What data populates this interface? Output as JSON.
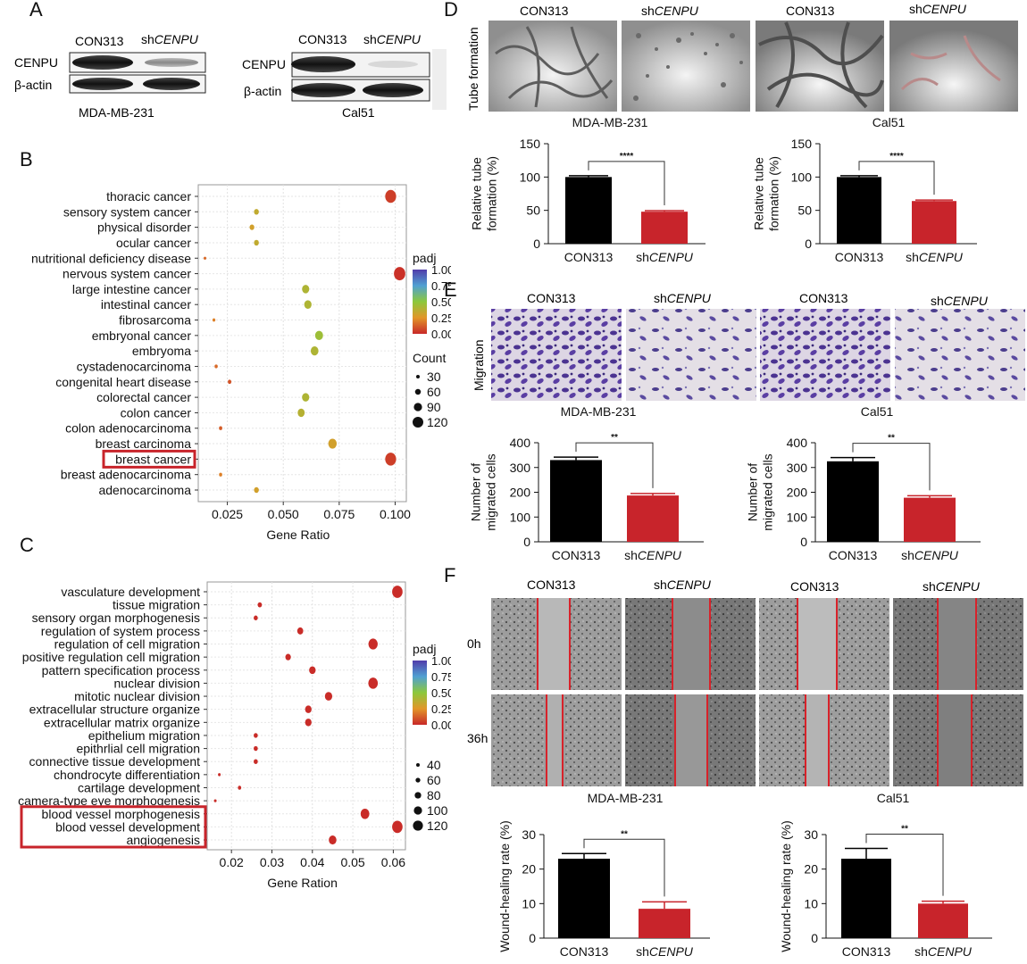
{
  "panels": {
    "a": "A",
    "b": "B",
    "c": "C",
    "d": "D",
    "e": "E",
    "f": "F"
  },
  "blots": {
    "left": {
      "col1": "CON313",
      "col2_prefix": "sh",
      "col2_gene": "CENPU",
      "row1": "CENPU",
      "row2": "β-actin",
      "cell": "MDA-MB-231"
    },
    "right": {
      "col1": "CON313",
      "col2_prefix": "sh",
      "col2_gene": "CENPU",
      "row1": "CENPU",
      "row2": "β-actin",
      "cell": "Cal51"
    }
  },
  "micro": {
    "d_header": [
      "CON313",
      "sh",
      "CENPU",
      "CON313",
      "sh",
      "CENPU"
    ],
    "d_rowlabel": "Tube formation",
    "e_header": [
      "CON313",
      "sh",
      "CENPU",
      "CON313",
      "sh",
      "CENPU"
    ],
    "e_rowlabel": "Migration",
    "f_header": [
      "CON313",
      "sh",
      "CENPU",
      "CON313",
      "sh",
      "CENPU"
    ],
    "f_row1": "0h",
    "f_row2": "36h",
    "cells": [
      "MDA-MB-231",
      "Cal51"
    ]
  },
  "chart_data": [
    {
      "id": "B",
      "type": "scatter",
      "categories": [
        "thoracic cancer",
        "sensory system cancer",
        "physical disorder",
        "ocular cancer",
        "nutritional deficiency disease",
        "nervous system cancer",
        "large intestine cancer",
        "intestinal cancer",
        "fibrosarcoma",
        "embryonal cancer",
        "embryoma",
        "cystadenocarcinoma",
        "congenital heart disease",
        "colorectal cancer",
        "colon cancer",
        "colon adenocarcinoma",
        "breast carcinoma",
        "breast cancer",
        "breast adenocarcinoma",
        "adenocarcinoma"
      ],
      "x": [
        0.098,
        0.038,
        0.036,
        0.038,
        0.015,
        0.102,
        0.06,
        0.061,
        0.019,
        0.066,
        0.064,
        0.02,
        0.026,
        0.06,
        0.058,
        0.022,
        0.072,
        0.098,
        0.022,
        0.038
      ],
      "padj": [
        0.05,
        0.35,
        0.3,
        0.35,
        0.15,
        0.02,
        0.4,
        0.4,
        0.2,
        0.45,
        0.4,
        0.15,
        0.1,
        0.4,
        0.38,
        0.12,
        0.3,
        0.05,
        0.2,
        0.3
      ],
      "count": [
        115,
        45,
        43,
        45,
        18,
        120,
        72,
        73,
        22,
        80,
        78,
        25,
        30,
        72,
        70,
        27,
        86,
        115,
        26,
        45
      ],
      "xlabel": "Gene Ratio",
      "xticks": [
        "0.025",
        "0.050",
        "0.075",
        "0.100"
      ],
      "xlim": [
        0.012,
        0.105
      ],
      "color_title": "padj",
      "color_ticks": [
        "1.00",
        "0.75",
        "0.50",
        "0.25",
        "0.00"
      ],
      "size_title": "Count",
      "size_ticks": [
        "30",
        "60",
        "90",
        "120"
      ],
      "highlight": "breast cancer"
    },
    {
      "id": "C",
      "type": "scatter",
      "categories": [
        "vasculature development",
        "tissue migration",
        "sensory organ morphogenesis",
        "regulation of system process",
        "regulation of cell migration",
        "positive regulation cell migration",
        "pattern specification process",
        "nuclear division",
        "mitotic nuclear division",
        "extracellular structure organize",
        "extracellular matrix organize",
        "epithelium migration",
        "epithrlial cell migration",
        "connective tissue development",
        "chondrocyte differentiation",
        "cartilage development",
        "camera-type eye morphogenesis",
        "blood vessel morphogenesis",
        "blood vessel development",
        "angiogenesis"
      ],
      "x": [
        0.061,
        0.027,
        0.026,
        0.037,
        0.055,
        0.034,
        0.04,
        0.055,
        0.044,
        0.039,
        0.039,
        0.026,
        0.026,
        0.026,
        0.017,
        0.022,
        0.016,
        0.053,
        0.061,
        0.045
      ],
      "padj": [
        0.01,
        0.01,
        0.01,
        0.01,
        0.01,
        0.01,
        0.01,
        0.01,
        0.01,
        0.01,
        0.01,
        0.01,
        0.01,
        0.01,
        0.01,
        0.01,
        0.01,
        0.01,
        0.01,
        0.01
      ],
      "count": [
        118,
        52,
        50,
        70,
        105,
        65,
        76,
        108,
        85,
        75,
        75,
        50,
        50,
        50,
        34,
        42,
        32,
        100,
        118,
        88
      ],
      "xlabel": "Gene Ration",
      "xticks": [
        "0.02",
        "0.03",
        "0.04",
        "0.05",
        "0.06"
      ],
      "xlim": [
        0.014,
        0.063
      ],
      "color_title": "padj",
      "color_ticks": [
        "1.00",
        "0.75",
        "0.50",
        "0.25",
        "0.00"
      ],
      "size_ticks": [
        "40",
        "60",
        "80",
        "100",
        "120"
      ],
      "highlight": [
        "blood vessel morphogenesis",
        "blood vessel development",
        "angiogenesis"
      ]
    },
    {
      "id": "D1",
      "type": "bar",
      "title": "MDA-MB-231",
      "categories": [
        "CON313",
        "shCENPU"
      ],
      "cat_labels": [
        [
          "CON313",
          ""
        ],
        [
          "sh",
          "CENPU"
        ]
      ],
      "values": [
        100,
        48
      ],
      "errors": [
        2,
        1.5
      ],
      "ylim": [
        0,
        150
      ],
      "yticks": [
        "0",
        "50",
        "100",
        "150"
      ],
      "ylabel": [
        "Relative tube",
        "formation (%)"
      ],
      "sig": "****"
    },
    {
      "id": "D2",
      "type": "bar",
      "title": "Cal51",
      "categories": [
        "CON313",
        "shCENPU"
      ],
      "cat_labels": [
        [
          "CON313",
          ""
        ],
        [
          "sh",
          "CENPU"
        ]
      ],
      "values": [
        100,
        64
      ],
      "errors": [
        2,
        1.5
      ],
      "ylim": [
        0,
        150
      ],
      "yticks": [
        "0",
        "50",
        "100",
        "150"
      ],
      "ylabel": [
        "Relative tube",
        "formation (%)"
      ],
      "sig": "****"
    },
    {
      "id": "E1",
      "type": "bar",
      "title": "MDA-MB-231",
      "categories": [
        "CON313",
        "shCENPU"
      ],
      "cat_labels": [
        [
          "CON313",
          ""
        ],
        [
          "sh",
          "CENPU"
        ]
      ],
      "values": [
        330,
        187
      ],
      "errors": [
        12,
        8
      ],
      "ylim": [
        0,
        400
      ],
      "yticks": [
        "0",
        "100",
        "200",
        "300",
        "400"
      ],
      "ylabel": [
        "Number of",
        "migrated cells"
      ],
      "sig": "**"
    },
    {
      "id": "E2",
      "type": "bar",
      "title": "Cal51",
      "categories": [
        "CON313",
        "shCENPU"
      ],
      "cat_labels": [
        [
          "CON313",
          ""
        ],
        [
          "sh",
          "CENPU"
        ]
      ],
      "values": [
        325,
        178
      ],
      "errors": [
        15,
        8
      ],
      "ylim": [
        0,
        400
      ],
      "yticks": [
        "0",
        "100",
        "200",
        "300",
        "400"
      ],
      "ylabel": [
        "Number of",
        "migrated cells"
      ],
      "sig": "**"
    },
    {
      "id": "F1",
      "type": "bar",
      "title": "MDA-MB-231",
      "categories": [
        "CON313",
        "shCENPU"
      ],
      "cat_labels": [
        [
          "CON313",
          ""
        ],
        [
          "sh",
          "CENPU"
        ]
      ],
      "values": [
        23,
        8.5
      ],
      "errors": [
        1.5,
        2
      ],
      "ylim": [
        0,
        30
      ],
      "yticks": [
        "0",
        "10",
        "20",
        "30"
      ],
      "ylabel": [
        "Wound-healing rate (%)"
      ],
      "sig": "**"
    },
    {
      "id": "F2",
      "type": "bar",
      "title": "Cal51",
      "categories": [
        "CON313",
        "shCENPU"
      ],
      "cat_labels": [
        [
          "CON313",
          ""
        ],
        [
          "sh",
          "CENPU"
        ]
      ],
      "values": [
        23,
        10
      ],
      "errors": [
        3,
        0.7
      ],
      "ylim": [
        0,
        30
      ],
      "yticks": [
        "0",
        "10",
        "20",
        "30"
      ],
      "ylabel": [
        "Wound-healing rate (%)"
      ],
      "sig": "**"
    }
  ]
}
